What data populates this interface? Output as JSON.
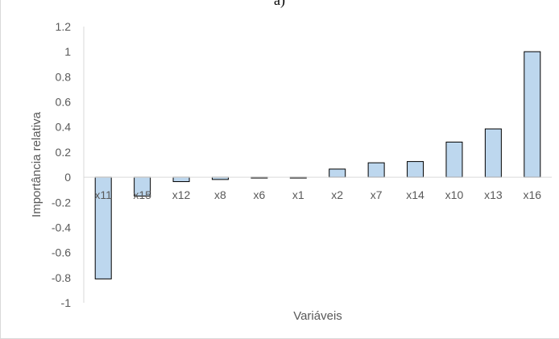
{
  "panel_label": "a)",
  "chart_data": {
    "type": "bar",
    "title": "",
    "xlabel": "Variáveis",
    "ylabel": "Importância relativa",
    "categories": [
      "x11",
      "x15",
      "x12",
      "x8",
      "x6",
      "x1",
      "x2",
      "x7",
      "x14",
      "x10",
      "x13",
      "x16"
    ],
    "values": [
      -0.81,
      -0.15,
      -0.035,
      -0.018,
      -0.005,
      0,
      0.065,
      0.115,
      0.125,
      0.28,
      0.385,
      1.0
    ],
    "ylim": [
      -1,
      1.2
    ],
    "yticks": [
      "1.2",
      "1",
      "0.8",
      "0.6",
      "0.4",
      "0.2",
      "0",
      "-0.2",
      "-0.4",
      "-0.6",
      "-0.8",
      "-1"
    ],
    "grid": false,
    "legend": "none",
    "bar_color": "#bdd7ee",
    "bar_edge_color": "#000000",
    "axis_color": "#d9d9d9",
    "label_color": "#595959"
  }
}
